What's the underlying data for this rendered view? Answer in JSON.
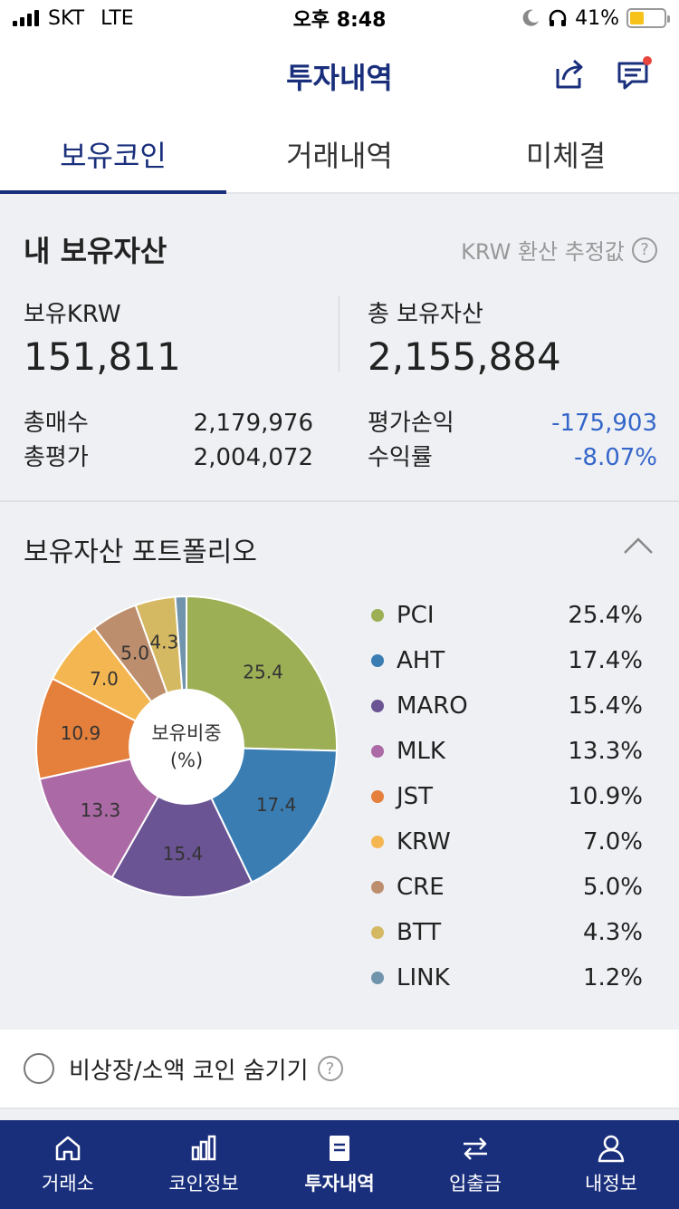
{
  "status_bar": {
    "carrier": "SKT",
    "network": "LTE",
    "time": "오후 8:48",
    "battery": "41%",
    "battery_level": 0.41
  },
  "nav": {
    "title": "투자내역"
  },
  "tabs": [
    {
      "label": "보유코인",
      "active": true
    },
    {
      "label": "거래내역",
      "active": false
    },
    {
      "label": "미체결",
      "active": false
    }
  ],
  "assets": {
    "title": "내 보유자산",
    "note": "KRW 환산 추정값",
    "help": "?",
    "krw_label": "보유KRW",
    "krw_value": "151,811",
    "total_label": "총 보유자산",
    "total_value": "2,155,884",
    "buy_label": "총매수",
    "buy_value": "2,179,976",
    "eval_label": "총평가",
    "eval_value": "2,004,072",
    "pnl_label": "평가손익",
    "pnl_value": "-175,903",
    "rate_label": "수익률",
    "rate_value": "-8.07%"
  },
  "portfolio": {
    "title": "보유자산 포트폴리오"
  },
  "chart_data": {
    "type": "pie",
    "center_label_line1": "보유비중",
    "center_label_line2": "(%)",
    "slices": [
      {
        "name": "PCI",
        "value": 25.4,
        "label": "25.4",
        "legend_value": "25.4%",
        "color": "#9caf55"
      },
      {
        "name": "AHT",
        "value": 17.4,
        "label": "17.4",
        "legend_value": "17.4%",
        "color": "#3a7db3"
      },
      {
        "name": "MARO",
        "value": 15.4,
        "label": "15.4",
        "legend_value": "15.4%",
        "color": "#6a5494"
      },
      {
        "name": "MLK",
        "value": 13.3,
        "label": "13.3",
        "legend_value": "13.3%",
        "color": "#ab6aa6"
      },
      {
        "name": "JST",
        "value": 10.9,
        "label": "10.9",
        "legend_value": "10.9%",
        "color": "#e57f3c"
      },
      {
        "name": "KRW",
        "value": 7.0,
        "label": "7.0",
        "legend_value": "7.0%",
        "color": "#f4b650"
      },
      {
        "name": "CRE",
        "value": 5.0,
        "label": "5.0",
        "legend_value": "5.0%",
        "color": "#bd8e6e"
      },
      {
        "name": "BTT",
        "value": 4.3,
        "label": "4.3",
        "legend_value": "4.3%",
        "color": "#d5b862"
      },
      {
        "name": "LINK",
        "value": 1.2,
        "label": "",
        "legend_value": "1.2%",
        "color": "#7094ab"
      }
    ]
  },
  "hide_option": {
    "label": "비상장/소액 코인 숨기기",
    "help": "?"
  },
  "tabbar": [
    {
      "label": "거래소",
      "icon": "home-icon",
      "active": false
    },
    {
      "label": "코인정보",
      "icon": "bar-chart-icon",
      "active": false
    },
    {
      "label": "투자내역",
      "icon": "document-icon",
      "active": true
    },
    {
      "label": "입출금",
      "icon": "transfer-icon",
      "active": false
    },
    {
      "label": "내정보",
      "icon": "user-icon",
      "active": false
    }
  ]
}
